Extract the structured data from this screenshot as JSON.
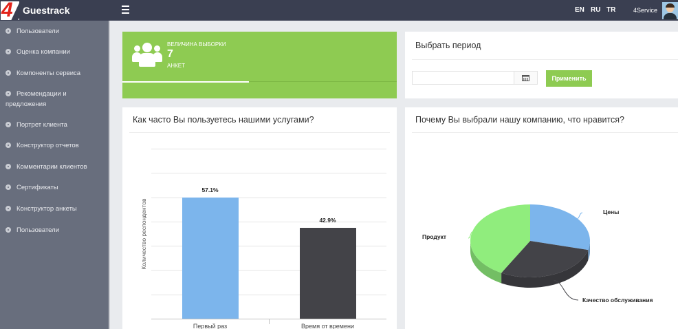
{
  "header": {
    "brand": "Guestrack",
    "logo_digit": "4",
    "languages": [
      "EN",
      "RU",
      "TR"
    ],
    "user_name": "4Service",
    "menu_icon": "hamburger-icon",
    "avatar_icon": "user-avatar"
  },
  "sidebar": {
    "items": [
      {
        "label": "Пользователи",
        "icon": "dashboard-icon"
      },
      {
        "label": "Оценка компании",
        "icon": "dashboard-icon"
      },
      {
        "label": "Компоненты сервиса",
        "icon": "dashboard-icon"
      },
      {
        "label": "Рекомендации и",
        "label2": "предложения",
        "icon": "dashboard-icon"
      },
      {
        "label": "Портрет клиента",
        "icon": "dashboard-icon"
      },
      {
        "label": "Конструктор отчетов",
        "icon": "dashboard-icon"
      },
      {
        "label": "Комментарии клиентов",
        "icon": "dashboard-icon"
      },
      {
        "label": "Сертификаты",
        "icon": "dashboard-icon"
      },
      {
        "label": "Конструктор анкеты",
        "icon": "dashboard-icon"
      },
      {
        "label": "Пользователи",
        "icon": "dashboard-icon"
      }
    ]
  },
  "sample": {
    "title": "ВЕЛИЧИНА ВЫБОРКИ",
    "value": "7",
    "unit": "АНКЕТ",
    "icon": "users-icon",
    "progress": 0.46
  },
  "period": {
    "title": "Выбрать период",
    "date_value": "",
    "calendar_icon": "calendar-icon",
    "apply_label": "Применить"
  },
  "colors": {
    "accent_green": "#8ecb52",
    "topbar": "#3a3f51",
    "sidebar": "#686e7d",
    "bar_blue": "#7cb5ec",
    "bar_dark": "#434348",
    "pie_green": "#90ed7d"
  },
  "chart_data": [
    {
      "type": "bar",
      "title": "Как часто Вы пользуетесь нашими услугами?",
      "ylabel": "Количество респондентов",
      "categories": [
        "Первый раз",
        "Время от времени"
      ],
      "values": [
        57.1,
        42.9
      ],
      "data_labels": [
        "57.1%",
        "42.9%"
      ],
      "colors": [
        "#7cb5ec",
        "#434348"
      ],
      "ylim": [
        0,
        80
      ],
      "grid": true
    },
    {
      "type": "pie",
      "title": "Почему Вы выбрали нашу компанию, что нравится?",
      "slices": [
        {
          "name": "Цены",
          "value": 29,
          "color": "#7cb5ec"
        },
        {
          "name": "Качество обслуживания",
          "value": 29,
          "color": "#434348"
        },
        {
          "name": "Продукт",
          "value": 42,
          "color": "#90ed7d"
        }
      ]
    }
  ]
}
